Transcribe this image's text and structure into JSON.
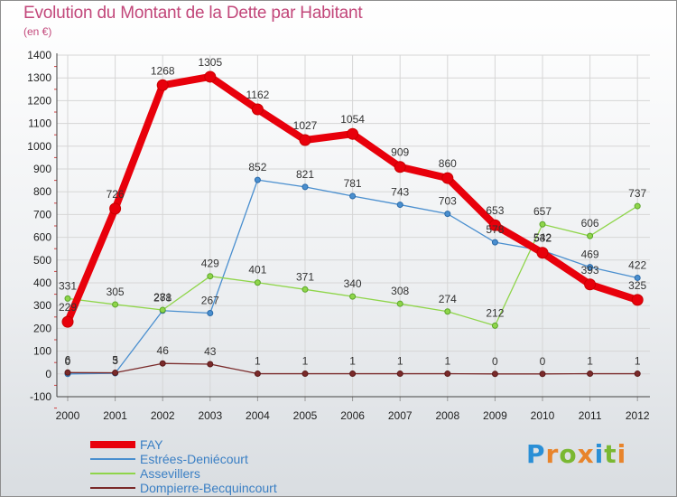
{
  "title": "Evolution du Montant de la Dette par Habitant",
  "subtitle": "(en €)",
  "brand": {
    "letters": [
      "P",
      "r",
      "o",
      "x",
      "i",
      "t",
      "i"
    ],
    "colors": [
      "#2a8fd6",
      "#e8842b",
      "#7ab832",
      "#e8842b",
      "#2a8fd6",
      "#7ab832",
      "#e8842b"
    ]
  },
  "chart_data": {
    "type": "line",
    "title": "Evolution du Montant de la Dette par Habitant",
    "subtitle": "(en €)",
    "x": [
      "2000",
      "2001",
      "2002",
      "2003",
      "2004",
      "2005",
      "2006",
      "2007",
      "2008",
      "2009",
      "2010",
      "2011",
      "2012"
    ],
    "ylim": [
      -100,
      1400
    ],
    "yticks": [
      -100,
      0,
      100,
      200,
      300,
      400,
      500,
      600,
      700,
      800,
      900,
      1000,
      1100,
      1200,
      1300,
      1400
    ],
    "grid": true,
    "legend_position": "bottom-left",
    "series": [
      {
        "name": "FAY",
        "color": "#e8000b",
        "values": [
          229,
          726,
          1268,
          1305,
          1162,
          1027,
          1054,
          909,
          860,
          653,
          532,
          393,
          325
        ]
      },
      {
        "name": "Estrées-Deniécourt",
        "color": "#4a8fcf",
        "values": [
          0,
          3,
          278,
          267,
          852,
          821,
          781,
          743,
          703,
          578,
          542,
          469,
          422
        ]
      },
      {
        "name": "Assevillers",
        "color": "#8fd54a",
        "values": [
          331,
          305,
          281,
          429,
          401,
          371,
          340,
          308,
          274,
          212,
          657,
          606,
          737
        ]
      },
      {
        "name": "Dompierre-Becquincourt",
        "color": "#7a2a2a",
        "values": [
          6,
          5,
          46,
          43,
          1,
          1,
          1,
          1,
          1,
          0,
          0,
          1,
          1
        ]
      }
    ]
  }
}
